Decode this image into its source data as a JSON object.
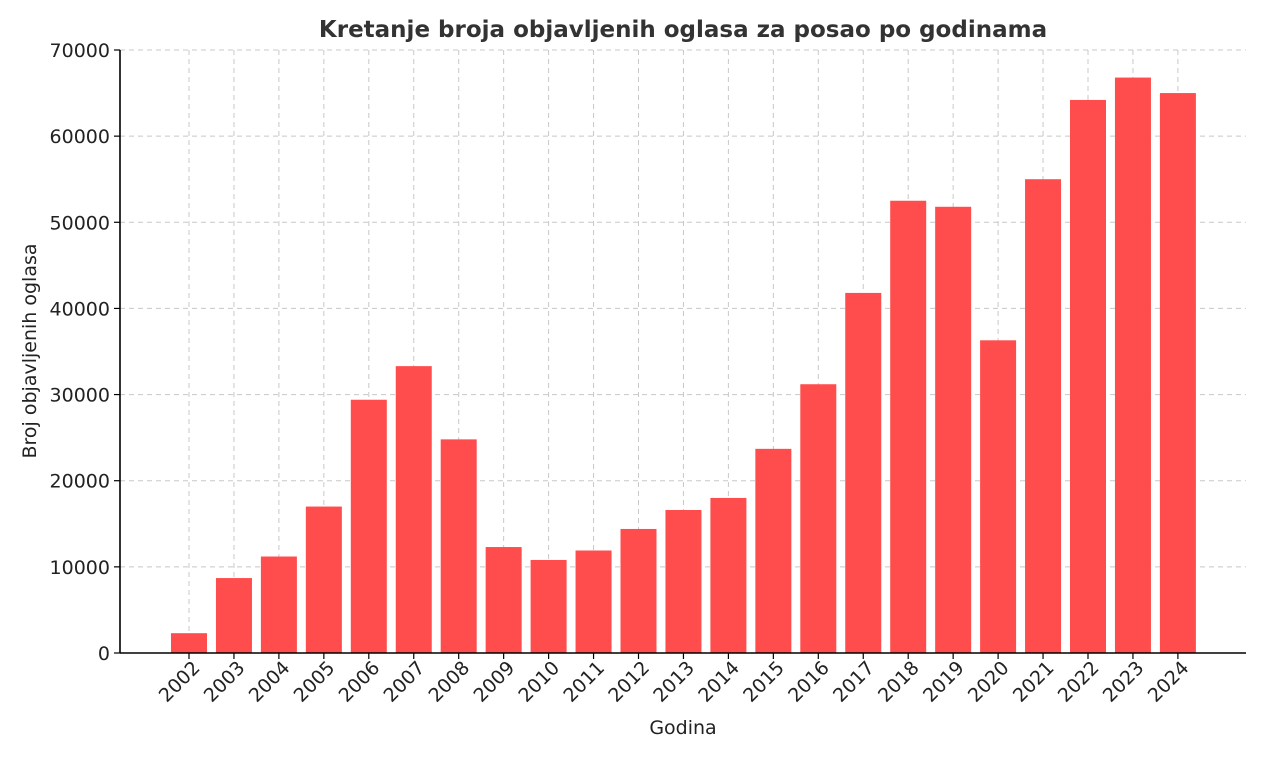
{
  "chart_data": {
    "type": "bar",
    "title": "Kretanje broja objavljenih oglasa za posao po godinama",
    "xlabel": "Godina",
    "ylabel": "Broj objavljenih oglasa",
    "categories": [
      "2002",
      "2003",
      "2004",
      "2005",
      "2006",
      "2007",
      "2008",
      "2009",
      "2010",
      "2011",
      "2012",
      "2013",
      "2014",
      "2015",
      "2016",
      "2017",
      "2018",
      "2019",
      "2020",
      "2021",
      "2022",
      "2023",
      "2024"
    ],
    "values": [
      2300,
      8700,
      11200,
      17000,
      29400,
      33300,
      24800,
      12300,
      10800,
      11900,
      14400,
      16600,
      18000,
      23700,
      31200,
      41800,
      52500,
      51800,
      36300,
      55000,
      64200,
      66800,
      65000
    ],
    "ylim": [
      0,
      70000
    ],
    "yticks": [
      0,
      10000,
      20000,
      30000,
      40000,
      50000,
      60000,
      70000
    ],
    "grid": true,
    "bar_color": "#ff4c4c",
    "x_tick_rotation": "45deg"
  }
}
